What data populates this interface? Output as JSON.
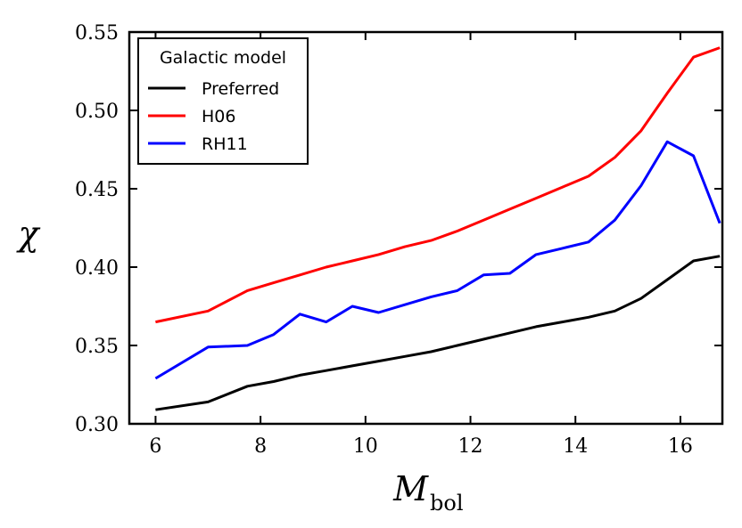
{
  "chart_data": {
    "type": "line",
    "title": "",
    "xlabel": "M",
    "xlabel_sub": "bol",
    "ylabel": "χ",
    "xlim": [
      5.5,
      16.8
    ],
    "ylim": [
      0.3,
      0.55
    ],
    "xticks": [
      "6",
      "8",
      "10",
      "12",
      "14",
      "16"
    ],
    "xtick_values": [
      6,
      8,
      10,
      12,
      14,
      16
    ],
    "yticks": [
      "0.30",
      "0.35",
      "0.40",
      "0.45",
      "0.50",
      "0.55"
    ],
    "ytick_values": [
      0.3,
      0.35,
      0.4,
      0.45,
      0.5,
      0.55
    ],
    "grid": false,
    "legend": {
      "title": "Galactic model",
      "placement": "top-left"
    },
    "series": [
      {
        "name": "Preferred",
        "color": "#000000",
        "x": [
          6.0,
          7.0,
          7.75,
          8.25,
          8.75,
          9.25,
          9.75,
          10.25,
          10.75,
          11.25,
          11.75,
          12.25,
          12.75,
          13.25,
          13.75,
          14.25,
          14.75,
          15.25,
          15.75,
          16.25,
          16.75
        ],
        "y": [
          0.309,
          0.314,
          0.324,
          0.327,
          0.331,
          0.334,
          0.337,
          0.34,
          0.343,
          0.346,
          0.35,
          0.354,
          0.358,
          0.362,
          0.365,
          0.368,
          0.372,
          0.38,
          0.392,
          0.404,
          0.407
        ]
      },
      {
        "name": "H06",
        "color": "#ff0000",
        "x": [
          6.0,
          7.0,
          7.75,
          8.25,
          8.75,
          9.25,
          9.75,
          10.25,
          10.75,
          11.25,
          11.75,
          12.25,
          12.75,
          13.25,
          13.75,
          14.25,
          14.75,
          15.25,
          15.75,
          16.25,
          16.75
        ],
        "y": [
          0.365,
          0.372,
          0.385,
          0.39,
          0.395,
          0.4,
          0.404,
          0.408,
          0.413,
          0.417,
          0.423,
          0.43,
          0.437,
          0.444,
          0.451,
          0.458,
          0.47,
          0.487,
          0.511,
          0.534,
          0.54
        ]
      },
      {
        "name": "RH11",
        "color": "#0000ff",
        "x": [
          6.0,
          7.0,
          7.75,
          8.25,
          8.75,
          9.25,
          9.75,
          10.25,
          10.75,
          11.25,
          11.75,
          12.25,
          12.75,
          13.25,
          13.75,
          14.25,
          14.75,
          15.25,
          15.75,
          16.25,
          16.75
        ],
        "y": [
          0.329,
          0.349,
          0.35,
          0.357,
          0.37,
          0.365,
          0.375,
          0.371,
          0.376,
          0.381,
          0.385,
          0.395,
          0.396,
          0.408,
          0.412,
          0.416,
          0.43,
          0.452,
          0.48,
          0.471,
          0.428
        ]
      }
    ]
  }
}
